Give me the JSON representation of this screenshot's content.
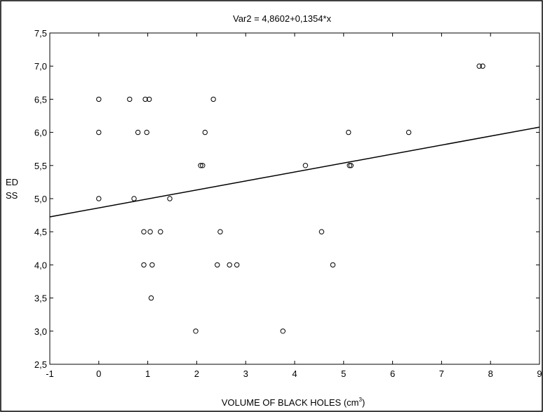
{
  "chart_data": {
    "type": "scatter",
    "title": "Var2 = 4,8602+0,1354*x",
    "xlabel": "VOLUME OF BLACK HOLES  (cm",
    "xlabel_sup": "3",
    "xlabel_close": ")",
    "ylabel_line1": "ED",
    "ylabel_line2": "SS",
    "xlim": [
      -1,
      9
    ],
    "ylim": [
      2.5,
      7.5
    ],
    "x_ticks": [
      -1,
      0,
      1,
      2,
      3,
      4,
      5,
      6,
      7,
      8,
      9
    ],
    "x_tick_labels": [
      "-1",
      "0",
      "1",
      "2",
      "3",
      "4",
      "5",
      "6",
      "7",
      "8",
      "9"
    ],
    "y_ticks": [
      2.5,
      3.0,
      3.5,
      4.0,
      4.5,
      5.0,
      5.5,
      6.0,
      6.5,
      7.0,
      7.5
    ],
    "y_tick_labels": [
      "2,5",
      "3,0",
      "3,5",
      "4,0",
      "4,5",
      "5,0",
      "5,5",
      "6,0",
      "6,5",
      "7,0",
      "7,5"
    ],
    "regression": {
      "intercept": 4.8602,
      "slope": 0.1354
    },
    "grid": false,
    "points": [
      [
        0.0,
        6.5
      ],
      [
        0.0,
        6.0
      ],
      [
        0.0,
        5.0
      ],
      [
        0.63,
        6.5
      ],
      [
        0.72,
        5.0
      ],
      [
        0.8,
        6.0
      ],
      [
        0.92,
        4.5
      ],
      [
        0.92,
        4.0
      ],
      [
        0.95,
        6.5
      ],
      [
        0.98,
        6.0
      ],
      [
        1.03,
        6.5
      ],
      [
        1.05,
        4.5
      ],
      [
        1.07,
        3.5
      ],
      [
        1.09,
        4.0
      ],
      [
        1.26,
        4.5
      ],
      [
        1.45,
        5.0
      ],
      [
        1.98,
        3.0
      ],
      [
        2.08,
        5.5
      ],
      [
        2.12,
        5.5
      ],
      [
        2.17,
        6.0
      ],
      [
        2.34,
        6.5
      ],
      [
        2.42,
        4.0
      ],
      [
        2.48,
        4.5
      ],
      [
        2.67,
        4.0
      ],
      [
        2.82,
        4.0
      ],
      [
        3.76,
        3.0
      ],
      [
        4.22,
        5.5
      ],
      [
        4.55,
        4.5
      ],
      [
        4.78,
        4.0
      ],
      [
        5.1,
        6.0
      ],
      [
        5.12,
        5.5
      ],
      [
        5.15,
        5.5
      ],
      [
        6.33,
        6.0
      ],
      [
        7.77,
        7.0
      ],
      [
        7.84,
        7.0
      ]
    ]
  }
}
